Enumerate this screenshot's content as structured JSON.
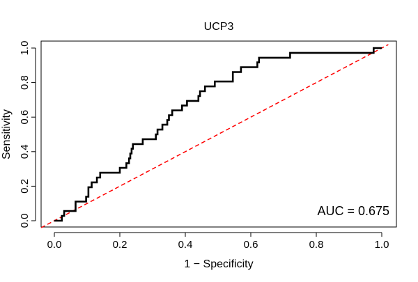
{
  "chart_data": {
    "type": "line",
    "title": "UCP3",
    "xlabel": "1 − Specificity",
    "ylabel": "Sensitivity",
    "xlim": [
      0,
      1
    ],
    "ylim": [
      0,
      1
    ],
    "x_ticks": [
      0.0,
      0.2,
      0.4,
      0.6,
      0.8,
      1.0
    ],
    "y_ticks": [
      0.0,
      0.2,
      0.4,
      0.6,
      0.8,
      1.0
    ],
    "x_tick_labels": [
      "0.0",
      "0.2",
      "0.4",
      "0.6",
      "0.8",
      "1.0"
    ],
    "y_tick_labels": [
      "0.0",
      "0.2",
      "0.4",
      "0.6",
      "0.8",
      "1.0"
    ],
    "grid": false,
    "annotation": "AUC = 0.675",
    "series": [
      {
        "color": "#000000",
        "style": "solid-step",
        "points": [
          [
            0.0,
            0.0
          ],
          [
            0.023,
            0.0
          ],
          [
            0.023,
            0.028
          ],
          [
            0.03,
            0.028
          ],
          [
            0.03,
            0.056
          ],
          [
            0.065,
            0.056
          ],
          [
            0.065,
            0.111
          ],
          [
            0.097,
            0.111
          ],
          [
            0.097,
            0.139
          ],
          [
            0.104,
            0.139
          ],
          [
            0.104,
            0.194
          ],
          [
            0.114,
            0.194
          ],
          [
            0.114,
            0.222
          ],
          [
            0.13,
            0.222
          ],
          [
            0.13,
            0.25
          ],
          [
            0.14,
            0.25
          ],
          [
            0.14,
            0.278
          ],
          [
            0.2,
            0.278
          ],
          [
            0.2,
            0.306
          ],
          [
            0.22,
            0.306
          ],
          [
            0.22,
            0.333
          ],
          [
            0.228,
            0.333
          ],
          [
            0.228,
            0.361
          ],
          [
            0.232,
            0.361
          ],
          [
            0.232,
            0.389
          ],
          [
            0.236,
            0.389
          ],
          [
            0.236,
            0.417
          ],
          [
            0.24,
            0.417
          ],
          [
            0.24,
            0.444
          ],
          [
            0.27,
            0.444
          ],
          [
            0.27,
            0.472
          ],
          [
            0.31,
            0.472
          ],
          [
            0.31,
            0.5
          ],
          [
            0.315,
            0.5
          ],
          [
            0.315,
            0.528
          ],
          [
            0.33,
            0.528
          ],
          [
            0.33,
            0.556
          ],
          [
            0.345,
            0.556
          ],
          [
            0.345,
            0.583
          ],
          [
            0.35,
            0.583
          ],
          [
            0.35,
            0.611
          ],
          [
            0.36,
            0.611
          ],
          [
            0.36,
            0.639
          ],
          [
            0.39,
            0.639
          ],
          [
            0.39,
            0.667
          ],
          [
            0.405,
            0.667
          ],
          [
            0.405,
            0.694
          ],
          [
            0.44,
            0.694
          ],
          [
            0.44,
            0.722
          ],
          [
            0.445,
            0.722
          ],
          [
            0.445,
            0.75
          ],
          [
            0.46,
            0.75
          ],
          [
            0.46,
            0.778
          ],
          [
            0.49,
            0.778
          ],
          [
            0.49,
            0.806
          ],
          [
            0.545,
            0.806
          ],
          [
            0.545,
            0.861
          ],
          [
            0.57,
            0.861
          ],
          [
            0.57,
            0.889
          ],
          [
            0.62,
            0.889
          ],
          [
            0.62,
            0.917
          ],
          [
            0.625,
            0.917
          ],
          [
            0.625,
            0.944
          ],
          [
            0.72,
            0.944
          ],
          [
            0.72,
            0.972
          ],
          [
            0.975,
            0.972
          ],
          [
            0.975,
            1.0
          ],
          [
            1.0,
            1.0
          ]
        ]
      }
    ],
    "reference_line": {
      "points": [
        [
          0,
          0
        ],
        [
          1,
          1
        ]
      ],
      "color": "#ff0000",
      "style": "dashed"
    }
  }
}
